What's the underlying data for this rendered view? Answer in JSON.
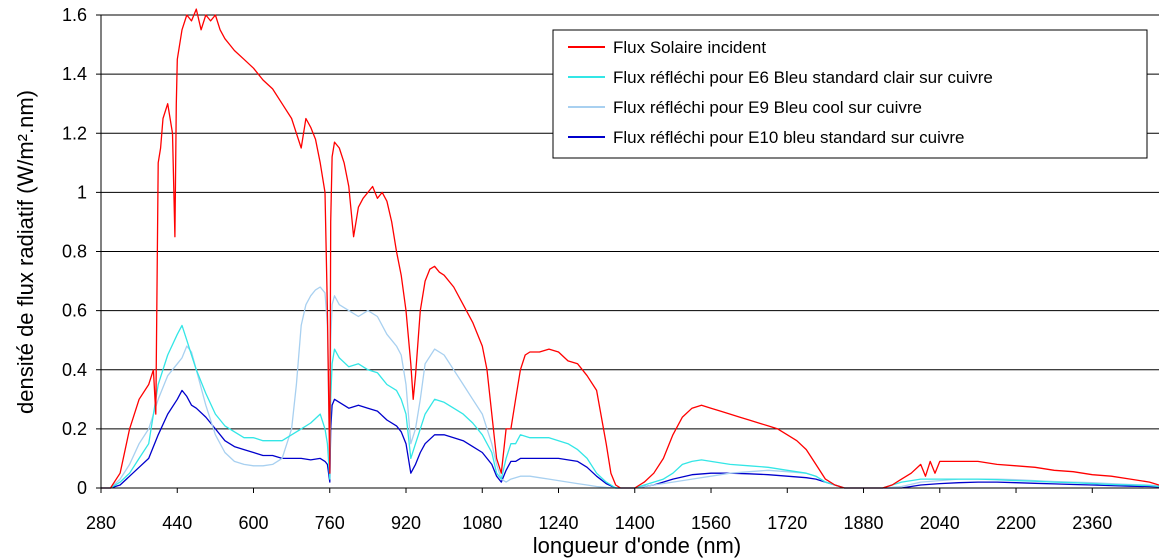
{
  "chart_data": {
    "type": "line",
    "title": "",
    "xlabel": "longueur d'onde (nm)",
    "ylabel": "densité de flux radiatif (W/m².nm)",
    "xlim": [
      280,
      2500
    ],
    "ylim": [
      0,
      1.6
    ],
    "x_ticks": [
      280,
      440,
      600,
      760,
      920,
      1080,
      1240,
      1400,
      1560,
      1720,
      1880,
      2040,
      2200,
      2360
    ],
    "y_ticks": [
      0,
      0.2,
      0.4,
      0.6,
      0.8,
      1,
      1.2,
      1.4,
      1.6
    ],
    "y_tick_labels": [
      "0",
      "0.2",
      "0.4",
      "0.6",
      "0.8",
      "1",
      "1.2",
      "1.4",
      "1.6"
    ],
    "grid": "horizontal",
    "legend": "top-right",
    "series": [
      {
        "name": "Flux Solaire incident",
        "color": "#ff0000",
        "x": [
          280,
          300,
          320,
          340,
          360,
          380,
          390,
          395,
          400,
          405,
          410,
          420,
          430,
          435,
          438,
          440,
          450,
          460,
          470,
          480,
          490,
          500,
          510,
          520,
          530,
          540,
          550,
          560,
          580,
          600,
          620,
          640,
          660,
          680,
          690,
          700,
          710,
          720,
          730,
          740,
          750,
          755,
          760,
          762,
          765,
          770,
          780,
          790,
          800,
          810,
          820,
          830,
          840,
          850,
          860,
          870,
          880,
          890,
          900,
          910,
          920,
          930,
          935,
          940,
          950,
          960,
          970,
          980,
          990,
          1000,
          1020,
          1040,
          1060,
          1080,
          1090,
          1100,
          1110,
          1120,
          1130,
          1140,
          1150,
          1160,
          1170,
          1180,
          1200,
          1220,
          1240,
          1260,
          1280,
          1300,
          1320,
          1340,
          1350,
          1360,
          1370,
          1380,
          1400,
          1420,
          1440,
          1460,
          1480,
          1500,
          1520,
          1540,
          1560,
          1580,
          1600,
          1620,
          1640,
          1660,
          1680,
          1700,
          1720,
          1740,
          1760,
          1780,
          1800,
          1820,
          1840,
          1860,
          1880,
          1900,
          1920,
          1940,
          1960,
          1980,
          2000,
          2010,
          2020,
          2030,
          2040,
          2060,
          2080,
          2100,
          2120,
          2140,
          2160,
          2200,
          2240,
          2280,
          2320,
          2360,
          2400,
          2440,
          2480,
          2500
        ],
        "values": [
          0,
          0,
          0.05,
          0.2,
          0.3,
          0.35,
          0.4,
          0.25,
          1.1,
          1.15,
          1.25,
          1.3,
          1.2,
          0.85,
          1.3,
          1.45,
          1.55,
          1.6,
          1.58,
          1.62,
          1.55,
          1.6,
          1.58,
          1.6,
          1.55,
          1.52,
          1.5,
          1.48,
          1.45,
          1.42,
          1.38,
          1.35,
          1.3,
          1.25,
          1.2,
          1.15,
          1.25,
          1.22,
          1.18,
          1.1,
          1.0,
          0.6,
          0.05,
          0.9,
          1.12,
          1.17,
          1.15,
          1.1,
          1.02,
          0.85,
          0.95,
          0.98,
          1.0,
          1.02,
          0.98,
          1.0,
          0.97,
          0.9,
          0.8,
          0.72,
          0.6,
          0.42,
          0.3,
          0.38,
          0.6,
          0.7,
          0.74,
          0.75,
          0.73,
          0.72,
          0.68,
          0.62,
          0.56,
          0.48,
          0.4,
          0.25,
          0.1,
          0.05,
          0.2,
          0.2,
          0.3,
          0.4,
          0.45,
          0.46,
          0.46,
          0.47,
          0.46,
          0.43,
          0.42,
          0.38,
          0.33,
          0.15,
          0.05,
          0.01,
          0,
          0,
          0,
          0.02,
          0.05,
          0.1,
          0.18,
          0.24,
          0.27,
          0.28,
          0.27,
          0.26,
          0.25,
          0.24,
          0.23,
          0.22,
          0.21,
          0.2,
          0.18,
          0.16,
          0.13,
          0.08,
          0.03,
          0.01,
          0,
          0,
          0,
          0,
          0,
          0.01,
          0.03,
          0.05,
          0.08,
          0.04,
          0.09,
          0.05,
          0.09,
          0.09,
          0.09,
          0.09,
          0.09,
          0.085,
          0.08,
          0.075,
          0.07,
          0.06,
          0.055,
          0.045,
          0.04,
          0.03,
          0.02,
          0.01
        ]
      },
      {
        "name": "Flux réfléchi pour E6 Bleu standard clair sur cuivre",
        "color": "#33e6e6",
        "x": [
          280,
          300,
          320,
          340,
          360,
          380,
          400,
          420,
          440,
          450,
          460,
          470,
          480,
          500,
          520,
          540,
          560,
          580,
          600,
          620,
          640,
          660,
          680,
          700,
          720,
          740,
          750,
          755,
          760,
          762,
          765,
          770,
          780,
          800,
          820,
          840,
          860,
          880,
          900,
          910,
          920,
          930,
          940,
          950,
          960,
          980,
          1000,
          1020,
          1040,
          1060,
          1080,
          1100,
          1110,
          1120,
          1130,
          1140,
          1150,
          1160,
          1180,
          1200,
          1220,
          1240,
          1260,
          1280,
          1300,
          1320,
          1340,
          1360,
          1380,
          1400,
          1420,
          1440,
          1460,
          1480,
          1500,
          1520,
          1540,
          1560,
          1580,
          1600,
          1640,
          1680,
          1720,
          1760,
          1780,
          1800,
          1820,
          1840,
          1860,
          1880,
          1900,
          1920,
          1940,
          1960,
          1980,
          2000,
          2020,
          2040,
          2080,
          2120,
          2160,
          2200,
          2240,
          2280,
          2320,
          2360,
          2400,
          2440,
          2480,
          2500
        ],
        "values": [
          0,
          0,
          0.02,
          0.05,
          0.1,
          0.15,
          0.35,
          0.45,
          0.52,
          0.55,
          0.5,
          0.45,
          0.4,
          0.32,
          0.25,
          0.21,
          0.19,
          0.17,
          0.17,
          0.16,
          0.16,
          0.16,
          0.18,
          0.2,
          0.22,
          0.25,
          0.2,
          0.15,
          0.03,
          0.3,
          0.42,
          0.47,
          0.44,
          0.41,
          0.42,
          0.4,
          0.39,
          0.35,
          0.33,
          0.3,
          0.25,
          0.1,
          0.15,
          0.2,
          0.25,
          0.3,
          0.29,
          0.27,
          0.25,
          0.22,
          0.18,
          0.12,
          0.05,
          0.03,
          0.1,
          0.15,
          0.15,
          0.18,
          0.17,
          0.17,
          0.17,
          0.16,
          0.15,
          0.13,
          0.1,
          0.05,
          0.02,
          0,
          0,
          0,
          0.01,
          0.02,
          0.03,
          0.05,
          0.08,
          0.09,
          0.095,
          0.09,
          0.085,
          0.08,
          0.075,
          0.07,
          0.06,
          0.05,
          0.04,
          0.02,
          0.01,
          0,
          0,
          0,
          0,
          0,
          0.01,
          0.02,
          0.025,
          0.03,
          0.03,
          0.03,
          0.03,
          0.03,
          0.028,
          0.025,
          0.023,
          0.02,
          0.018,
          0.015,
          0.012,
          0.01,
          0.008,
          0.005
        ]
      },
      {
        "name": "Flux réfléchi pour E9 Bleu cool sur cuivre",
        "color": "#a8d0f0",
        "x": [
          280,
          300,
          320,
          340,
          360,
          380,
          400,
          420,
          440,
          450,
          460,
          470,
          480,
          500,
          520,
          540,
          560,
          580,
          600,
          620,
          640,
          660,
          680,
          690,
          700,
          710,
          720,
          730,
          740,
          750,
          755,
          760,
          762,
          765,
          770,
          780,
          800,
          820,
          840,
          860,
          880,
          890,
          900,
          910,
          920,
          930,
          940,
          950,
          960,
          980,
          1000,
          1020,
          1040,
          1060,
          1080,
          1100,
          1110,
          1120,
          1130,
          1140,
          1160,
          1180,
          1200,
          1220,
          1240,
          1260,
          1280,
          1300,
          1320,
          1340,
          1360,
          1380,
          1400,
          1440,
          1480,
          1520,
          1560,
          1600,
          1640,
          1680,
          1720,
          1760,
          1780,
          1800,
          1820,
          1840,
          1880,
          1920,
          1960,
          2000,
          2040,
          2080,
          2120,
          2160,
          2200,
          2240,
          2280,
          2320,
          2360,
          2400,
          2440,
          2480,
          2500
        ],
        "values": [
          0,
          0,
          0.03,
          0.08,
          0.15,
          0.2,
          0.3,
          0.38,
          0.42,
          0.44,
          0.48,
          0.46,
          0.4,
          0.28,
          0.18,
          0.12,
          0.09,
          0.08,
          0.075,
          0.075,
          0.08,
          0.1,
          0.2,
          0.35,
          0.55,
          0.62,
          0.65,
          0.67,
          0.68,
          0.66,
          0.55,
          0.05,
          0.5,
          0.62,
          0.65,
          0.62,
          0.6,
          0.58,
          0.6,
          0.58,
          0.52,
          0.5,
          0.48,
          0.45,
          0.35,
          0.15,
          0.2,
          0.3,
          0.42,
          0.47,
          0.45,
          0.4,
          0.35,
          0.3,
          0.25,
          0.15,
          0.08,
          0.03,
          0.02,
          0.03,
          0.04,
          0.04,
          0.035,
          0.03,
          0.025,
          0.02,
          0.015,
          0.01,
          0.005,
          0.002,
          0,
          0,
          0,
          0.01,
          0.02,
          0.03,
          0.04,
          0.05,
          0.055,
          0.06,
          0.055,
          0.05,
          0.04,
          0.02,
          0.01,
          0,
          0,
          0,
          0.005,
          0.02,
          0.025,
          0.03,
          0.03,
          0.03,
          0.028,
          0.025,
          0.022,
          0.02,
          0.018,
          0.015,
          0.012,
          0.01,
          0.008
        ]
      },
      {
        "name": "Flux réfléchi pour E10 bleu standard sur cuivre",
        "color": "#0000cc",
        "x": [
          280,
          300,
          320,
          340,
          360,
          380,
          400,
          420,
          440,
          450,
          460,
          470,
          480,
          500,
          520,
          540,
          560,
          580,
          600,
          620,
          640,
          660,
          680,
          700,
          720,
          740,
          750,
          755,
          760,
          762,
          765,
          770,
          780,
          800,
          820,
          840,
          860,
          880,
          900,
          910,
          920,
          930,
          940,
          950,
          960,
          980,
          1000,
          1020,
          1040,
          1060,
          1080,
          1100,
          1110,
          1120,
          1130,
          1140,
          1150,
          1160,
          1180,
          1200,
          1220,
          1240,
          1260,
          1280,
          1300,
          1320,
          1340,
          1360,
          1380,
          1400,
          1440,
          1480,
          1520,
          1560,
          1600,
          1640,
          1680,
          1720,
          1760,
          1780,
          1800,
          1820,
          1840,
          1880,
          1920,
          1960,
          2000,
          2040,
          2080,
          2120,
          2160,
          2200,
          2240,
          2280,
          2320,
          2360,
          2400,
          2440,
          2480,
          2500
        ],
        "values": [
          0,
          0,
          0.01,
          0.04,
          0.07,
          0.1,
          0.18,
          0.25,
          0.3,
          0.33,
          0.31,
          0.28,
          0.27,
          0.24,
          0.2,
          0.16,
          0.14,
          0.13,
          0.12,
          0.11,
          0.11,
          0.1,
          0.1,
          0.1,
          0.095,
          0.1,
          0.09,
          0.08,
          0.02,
          0.2,
          0.28,
          0.3,
          0.29,
          0.27,
          0.28,
          0.27,
          0.26,
          0.23,
          0.21,
          0.19,
          0.15,
          0.05,
          0.08,
          0.12,
          0.15,
          0.18,
          0.18,
          0.17,
          0.16,
          0.14,
          0.12,
          0.08,
          0.04,
          0.02,
          0.06,
          0.09,
          0.09,
          0.1,
          0.1,
          0.1,
          0.1,
          0.1,
          0.095,
          0.09,
          0.07,
          0.04,
          0.015,
          0,
          0,
          0,
          0.01,
          0.03,
          0.045,
          0.05,
          0.05,
          0.048,
          0.045,
          0.04,
          0.035,
          0.03,
          0.02,
          0.01,
          0,
          0,
          0,
          0,
          0.01,
          0.015,
          0.018,
          0.02,
          0.02,
          0.018,
          0.016,
          0.014,
          0.012,
          0.01,
          0.008,
          0.006,
          0.005,
          0.004
        ]
      }
    ]
  }
}
